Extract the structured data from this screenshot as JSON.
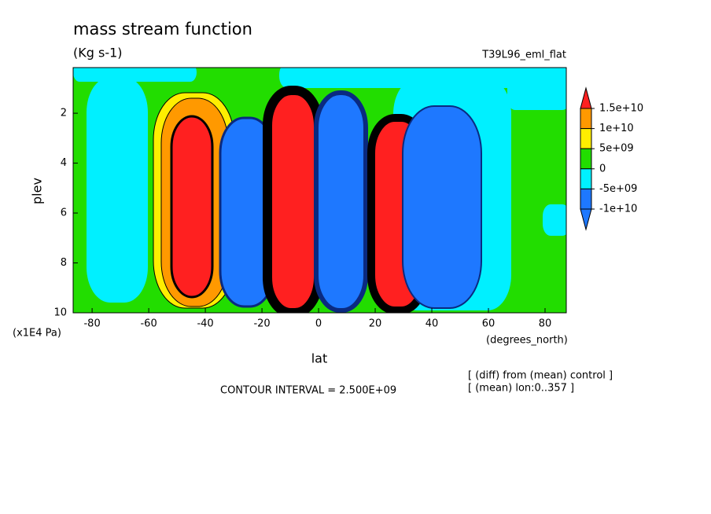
{
  "chart_data": {
    "type": "contour",
    "title": "mass stream function",
    "subtitle": "(Kg s-1)",
    "dataset": "T39L96_eml_flat",
    "xlabel": "lat",
    "xunits": "(degrees_north)",
    "ylabel": "plev",
    "yunits": "(x1E4 Pa)",
    "xlim": [
      -86.7,
      87.5
    ],
    "xticks": [
      -80,
      -60,
      -40,
      -20,
      0,
      20,
      40,
      60,
      80
    ],
    "ylim": [
      10,
      0.17
    ],
    "yticks": [
      2,
      4,
      6,
      8,
      10
    ],
    "levels": [
      {
        "value": 15000000000,
        "label": "1.5e+10"
      },
      {
        "value": 10000000000,
        "label": "1e+10"
      },
      {
        "value": 5000000000,
        "label": "5e+09"
      },
      0,
      {
        "value": -5000000000,
        "label": "-5e+09"
      },
      {
        "value": -10000000000,
        "label": "-1e+10"
      }
    ],
    "colors": [
      "#ff2020",
      "#ff9900",
      "#ffee00",
      "#22dd00",
      "#00f0ff",
      "#1e78ff",
      "#1e78ff"
    ],
    "annotations": [
      "CONTOUR INTERVAL = 2.500E+09",
      "[ (diff) from (mean) control ]",
      "[ (mean) lon:0..357 ]"
    ]
  }
}
